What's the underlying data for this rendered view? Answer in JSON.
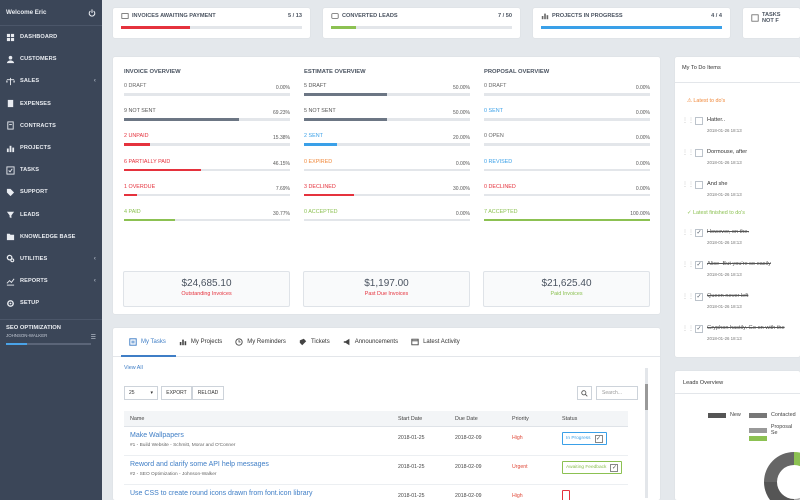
{
  "sidebar": {
    "welcome": "Welcome Eric",
    "items": [
      {
        "label": "Dashboard",
        "icon": "dashboard-icon",
        "chev": ""
      },
      {
        "label": "Customers",
        "icon": "users-icon",
        "chev": ""
      },
      {
        "label": "Sales",
        "icon": "balance-icon",
        "chev": "‹"
      },
      {
        "label": "Expenses",
        "icon": "document-icon",
        "chev": ""
      },
      {
        "label": "Contracts",
        "icon": "contract-icon",
        "chev": ""
      },
      {
        "label": "Projects",
        "icon": "bars-icon",
        "chev": ""
      },
      {
        "label": "Tasks",
        "icon": "tasks-icon",
        "chev": ""
      },
      {
        "label": "Support",
        "icon": "tag-icon",
        "chev": ""
      },
      {
        "label": "Leads",
        "icon": "leads-icon",
        "chev": ""
      },
      {
        "label": "Knowledge Base",
        "icon": "folder-icon",
        "chev": ""
      },
      {
        "label": "Utilities",
        "icon": "cogs-icon",
        "chev": "‹"
      },
      {
        "label": "Reports",
        "icon": "chart-icon",
        "chev": "‹"
      },
      {
        "label": "Setup",
        "icon": "gear-icon",
        "chev": ""
      }
    ],
    "project": {
      "title": "SEO OPTIMIZATION",
      "subtitle": "JOHNSON-WALKER",
      "progress": 0.25
    }
  },
  "stats": [
    {
      "label": "Invoices Awaiting Payment",
      "value": "5 / 13",
      "color": "#e5323d",
      "fill": 0.38
    },
    {
      "label": "Converted Leads",
      "value": "7 / 50",
      "color": "#8cc152",
      "fill": 0.14
    },
    {
      "label": "Projects In Progress",
      "value": "4 / 4",
      "color": "#3aa0e8",
      "fill": 1.0
    },
    {
      "label": "Tasks Not F",
      "value": "",
      "color": "#c0c0c0",
      "fill": 0
    }
  ],
  "overview": [
    {
      "title": "Invoice Overview",
      "rows": [
        {
          "n": "0",
          "label": "Draft",
          "pct": "0.00%",
          "color": "#888888",
          "keycolor": "#666666",
          "fill": 0
        },
        {
          "n": "9",
          "label": "Not Sent",
          "pct": "69.23%",
          "color": "#6c7684",
          "keycolor": "#555555",
          "fill": 0.6923
        },
        {
          "n": "2",
          "label": "Unpaid",
          "pct": "15.38%",
          "color": "#e5323d",
          "keycolor": "#e5323d",
          "fill": 0.1538
        },
        {
          "n": "6",
          "label": "Partially Paid",
          "pct": "46.15%",
          "color": "#e5323d",
          "keycolor": "#e5323d",
          "fill": 0.4615
        },
        {
          "n": "1",
          "label": "Overdue",
          "pct": "7.69%",
          "color": "#e5323d",
          "keycolor": "#e5323d",
          "fill": 0.0769
        },
        {
          "n": "4",
          "label": "Paid",
          "pct": "30.77%",
          "color": "#8cc152",
          "keycolor": "#8cc152",
          "fill": 0.3077
        }
      ],
      "total": "$24,685.10",
      "total_label": "Outstanding Invoices",
      "total_color": "#e5323d"
    },
    {
      "title": "Estimate Overview",
      "rows": [
        {
          "n": "5",
          "label": "Draft",
          "pct": "50.00%",
          "color": "#6c7684",
          "keycolor": "#555555",
          "fill": 0.5
        },
        {
          "n": "5",
          "label": "Not Sent",
          "pct": "50.00%",
          "color": "#6c7684",
          "keycolor": "#555555",
          "fill": 0.5
        },
        {
          "n": "2",
          "label": "Sent",
          "pct": "20.00%",
          "color": "#3aa0e8",
          "keycolor": "#3aa0e8",
          "fill": 0.2
        },
        {
          "n": "0",
          "label": "Expired",
          "pct": "0.00%",
          "color": "#f0883a",
          "keycolor": "#f0883a",
          "fill": 0
        },
        {
          "n": "3",
          "label": "Declined",
          "pct": "30.00%",
          "color": "#e5323d",
          "keycolor": "#e5323d",
          "fill": 0.3
        },
        {
          "n": "0",
          "label": "Accepted",
          "pct": "0.00%",
          "color": "#8cc152",
          "keycolor": "#8cc152",
          "fill": 0
        }
      ],
      "total": "$1,197.00",
      "total_label": "Past Due Invoices",
      "total_color": "#e5323d"
    },
    {
      "title": "Proposal Overview",
      "rows": [
        {
          "n": "0",
          "label": "Draft",
          "pct": "0.00%",
          "color": "#888888",
          "keycolor": "#666666",
          "fill": 0
        },
        {
          "n": "0",
          "label": "Sent",
          "pct": "0.00%",
          "color": "#3aa0e8",
          "keycolor": "#3aa0e8",
          "fill": 0
        },
        {
          "n": "0",
          "label": "Open",
          "pct": "0.00%",
          "color": "#888888",
          "keycolor": "#666666",
          "fill": 0
        },
        {
          "n": "0",
          "label": "Revised",
          "pct": "0.00%",
          "color": "#3aa0e8",
          "keycolor": "#3aa0e8",
          "fill": 0
        },
        {
          "n": "0",
          "label": "Declined",
          "pct": "0.00%",
          "color": "#e5323d",
          "keycolor": "#e5323d",
          "fill": 0
        },
        {
          "n": "7",
          "label": "Accepted",
          "pct": "100.00%",
          "color": "#8cc152",
          "keycolor": "#8cc152",
          "fill": 1.0
        }
      ],
      "total": "$21,625.40",
      "total_label": "Paid Invoices",
      "total_color": "#8cc152"
    }
  ],
  "tasks": {
    "tabs": [
      "My Tasks",
      "My Projects",
      "My Reminders",
      "Tickets",
      "Announcements",
      "Latest Activity"
    ],
    "view_all": "View All",
    "page_size": "25",
    "export": "EXPORT",
    "reload": "RELOAD",
    "search_placeholder": "Search...",
    "columns": [
      "Name",
      "Start Date",
      "Due Date",
      "Priority",
      "Status"
    ],
    "rows": [
      {
        "name": "Make Wallpapers",
        "sub": "#1 - Build Website - Schmitt, Morar and O'Conner",
        "start": "2018-01-25",
        "due": "2018-02-09",
        "priority": "High",
        "status": "In Progress",
        "status_color": "#3aa0e8"
      },
      {
        "name": "Reword and clarify some API help messages",
        "sub": "#2 - SEO Optimization - Johnson-Walker",
        "start": "2018-01-25",
        "due": "2018-02-09",
        "priority": "Urgent",
        "status": "Awaiting Feedback",
        "status_color": "#8cc152"
      },
      {
        "name": "Use CSS to create round icons drawn from font.icon library",
        "sub": "",
        "start": "2018-01-25",
        "due": "2018-02-09",
        "priority": "High",
        "status": "",
        "status_color": "#e5323d"
      }
    ]
  },
  "todo": {
    "title": "My To Do Items",
    "latest": "Latest to do's",
    "finished": "Latest finished to do's",
    "items": [
      {
        "text": "Hatter..",
        "date": "2018-01-26 18:13",
        "done": false
      },
      {
        "text": "Dormouse, after",
        "date": "2018-01-26 18:13",
        "done": false
      },
      {
        "text": "And she",
        "date": "2018-01-26 18:13",
        "done": false
      }
    ],
    "done_items": [
      {
        "text": "However, on the.",
        "date": "2018-01-26 18:13",
        "done": true
      },
      {
        "text": "Alice- But you're so easily",
        "date": "2018-01-26 18:13",
        "done": true
      },
      {
        "text": "Queen never left",
        "date": "2018-01-26 18:13",
        "done": true
      },
      {
        "text": "Gryphon hastily. Go on with the",
        "date": "2018-01-26 18:13",
        "done": true
      }
    ]
  },
  "leads": {
    "title": "Leads Overview",
    "legend": [
      {
        "label": "New",
        "color": "#555555"
      },
      {
        "label": "Contacted",
        "color": "#777777"
      },
      {
        "label": "Proposal Se",
        "color": "#999999"
      },
      {
        "label": "",
        "color": "#8cc152"
      }
    ]
  }
}
